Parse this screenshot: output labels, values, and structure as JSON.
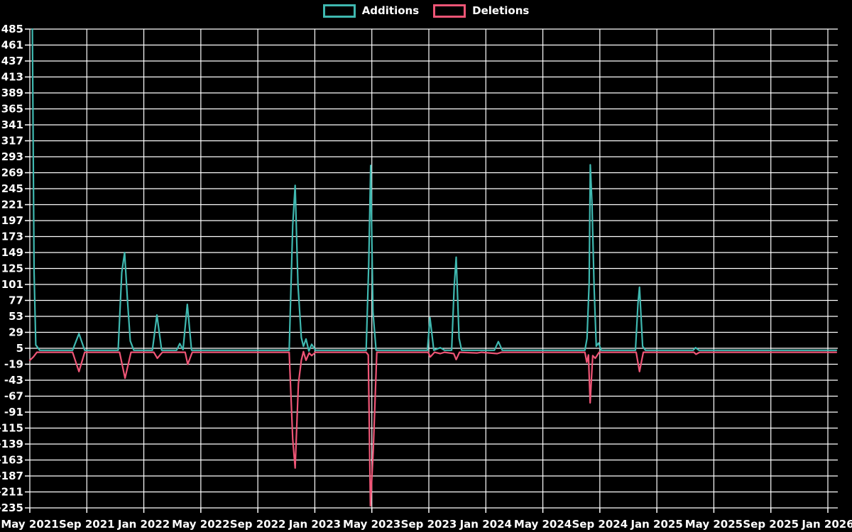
{
  "chart_data": {
    "type": "line",
    "title": "",
    "legend_position": "top",
    "background_color": "#000000",
    "grid_color": "#ffffff",
    "text_color": "#ffffff",
    "grid": true,
    "x_axis": {
      "labels": [
        "May 2021",
        "Sep 2021",
        "Jan 2022",
        "May 2022",
        "Sep 2022",
        "Jan 2023",
        "May 2023",
        "Sep 2023",
        "Jan 2024",
        "May 2024",
        "Sep 2024",
        "Jan 2025",
        "May 2025",
        "Sep 2025",
        "Jan 2026"
      ],
      "months_per_label": 4,
      "unit": "month index from May 2021"
    },
    "y_axis": {
      "ticks": [
        485,
        461,
        437,
        413,
        389,
        365,
        341,
        317,
        293,
        269,
        245,
        221,
        197,
        173,
        149,
        125,
        101,
        77,
        53,
        29,
        5,
        -19,
        -43,
        -67,
        -91,
        -115,
        -139,
        -163,
        -187,
        -211,
        -235
      ],
      "max": 485,
      "min": -235,
      "step": 24
    },
    "series": [
      {
        "name": "Additions",
        "color": "#3fb8b0",
        "points": [
          [
            0.18,
            485
          ],
          [
            0.3,
            120
          ],
          [
            0.42,
            10
          ],
          [
            0.7,
            2
          ],
          [
            3.0,
            2
          ],
          [
            3.45,
            27
          ],
          [
            3.85,
            2
          ],
          [
            6.2,
            2
          ],
          [
            6.45,
            119
          ],
          [
            6.65,
            149
          ],
          [
            6.85,
            78
          ],
          [
            7.05,
            16
          ],
          [
            7.3,
            2
          ],
          [
            8.6,
            2
          ],
          [
            8.92,
            55
          ],
          [
            9.25,
            2
          ],
          [
            10.3,
            2
          ],
          [
            10.52,
            12
          ],
          [
            10.75,
            3
          ],
          [
            11.05,
            71
          ],
          [
            11.35,
            2
          ],
          [
            18.2,
            2
          ],
          [
            18.45,
            190
          ],
          [
            18.62,
            250
          ],
          [
            18.82,
            100
          ],
          [
            19.05,
            21
          ],
          [
            19.2,
            8
          ],
          [
            19.38,
            19
          ],
          [
            19.58,
            1
          ],
          [
            19.78,
            11
          ],
          [
            20.05,
            2
          ],
          [
            23.6,
            2
          ],
          [
            23.78,
            130
          ],
          [
            23.92,
            280
          ],
          [
            24.08,
            60
          ],
          [
            24.3,
            2
          ],
          [
            27.9,
            2
          ],
          [
            28.08,
            51
          ],
          [
            28.35,
            2
          ],
          [
            28.8,
            6
          ],
          [
            29.1,
            2
          ],
          [
            29.6,
            2
          ],
          [
            29.78,
            98
          ],
          [
            29.92,
            142
          ],
          [
            30.12,
            20
          ],
          [
            30.3,
            2
          ],
          [
            32.6,
            2
          ],
          [
            32.88,
            15
          ],
          [
            33.15,
            2
          ],
          [
            38.95,
            2
          ],
          [
            39.1,
            20
          ],
          [
            39.25,
            104
          ],
          [
            39.33,
            281
          ],
          [
            39.45,
            222
          ],
          [
            39.6,
            96
          ],
          [
            39.75,
            8
          ],
          [
            39.9,
            13
          ],
          [
            40.1,
            2
          ],
          [
            42.5,
            2
          ],
          [
            42.68,
            73
          ],
          [
            42.78,
            97
          ],
          [
            43.0,
            8
          ],
          [
            43.2,
            2
          ],
          [
            46.55,
            2
          ],
          [
            46.72,
            6
          ],
          [
            46.95,
            2
          ],
          [
            56.6,
            2
          ]
        ]
      },
      {
        "name": "Deletions",
        "color": "#ee5576",
        "points": [
          [
            0,
            -13
          ],
          [
            0.25,
            -8
          ],
          [
            0.5,
            -1
          ],
          [
            3.0,
            -1
          ],
          [
            3.45,
            -30
          ],
          [
            3.85,
            -1
          ],
          [
            6.3,
            -1
          ],
          [
            6.68,
            -40
          ],
          [
            7.1,
            -1
          ],
          [
            8.7,
            -1
          ],
          [
            8.95,
            -10
          ],
          [
            9.3,
            -1
          ],
          [
            10.9,
            -1
          ],
          [
            11.08,
            -19
          ],
          [
            11.4,
            -1
          ],
          [
            18.2,
            -1
          ],
          [
            18.45,
            -132
          ],
          [
            18.62,
            -175
          ],
          [
            18.85,
            -48
          ],
          [
            19.05,
            -13
          ],
          [
            19.2,
            0
          ],
          [
            19.38,
            -13
          ],
          [
            19.6,
            -2
          ],
          [
            19.78,
            -6
          ],
          [
            20.05,
            -1
          ],
          [
            23.6,
            -1
          ],
          [
            23.75,
            -5
          ],
          [
            23.9,
            -232
          ],
          [
            24.1,
            -149
          ],
          [
            24.35,
            -1
          ],
          [
            27.95,
            -1
          ],
          [
            28.1,
            -8
          ],
          [
            28.4,
            -1
          ],
          [
            28.8,
            -3
          ],
          [
            29.1,
            -1
          ],
          [
            29.75,
            -3
          ],
          [
            29.92,
            -12
          ],
          [
            30.15,
            -1
          ],
          [
            31.4,
            -2
          ],
          [
            31.7,
            -1
          ],
          [
            32.8,
            -3
          ],
          [
            33.1,
            -1
          ],
          [
            38.95,
            -1
          ],
          [
            39.08,
            -16
          ],
          [
            39.2,
            -5
          ],
          [
            39.32,
            -77
          ],
          [
            39.5,
            -6
          ],
          [
            39.68,
            -10
          ],
          [
            39.95,
            -1
          ],
          [
            42.55,
            -1
          ],
          [
            42.78,
            -30
          ],
          [
            43.05,
            -1
          ],
          [
            46.6,
            -1
          ],
          [
            46.75,
            -4
          ],
          [
            47.0,
            -1
          ],
          [
            56.6,
            -1
          ]
        ]
      }
    ]
  }
}
